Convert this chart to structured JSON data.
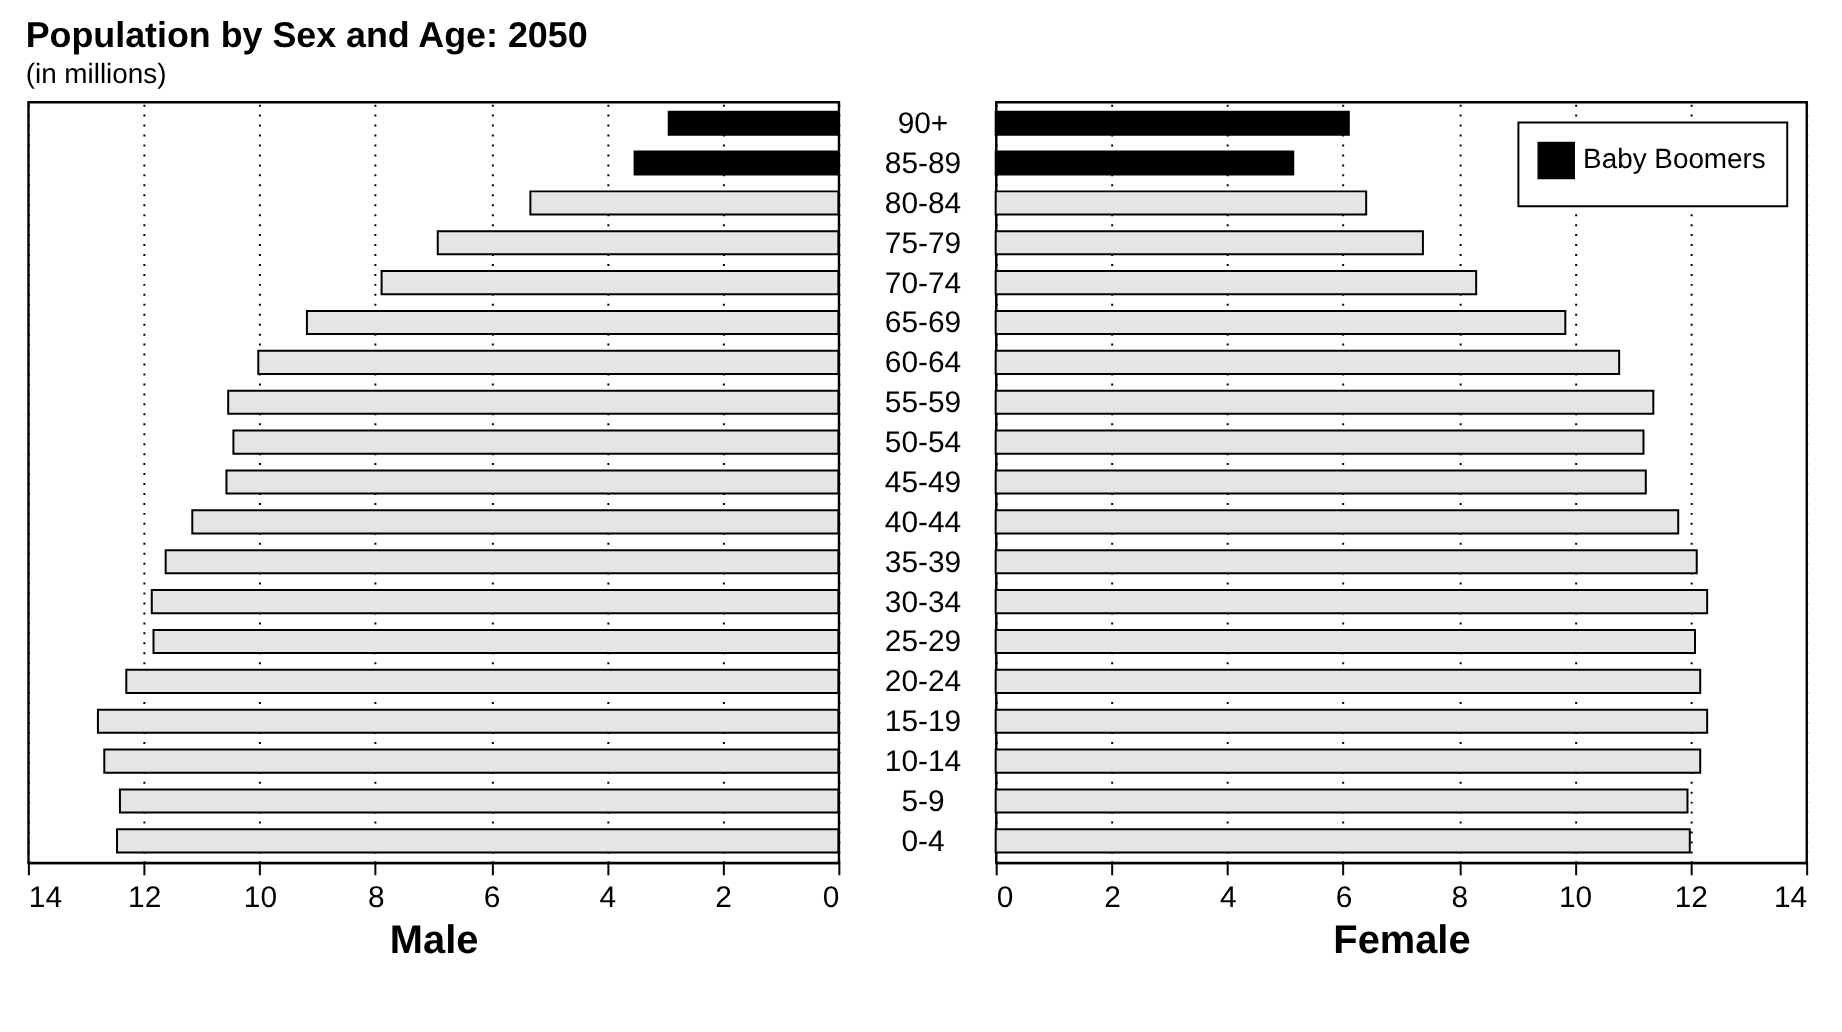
{
  "chart_data": [
    {
      "type": "bar",
      "orientation": "horizontal",
      "title": "Population by Sex and Age: 2050",
      "subtitle": "(in millions)",
      "xlabel": "Male",
      "categories": [
        "90+",
        "85-89",
        "80-84",
        "75-79",
        "70-74",
        "65-69",
        "60-64",
        "55-59",
        "50-54",
        "45-49",
        "40-44",
        "35-39",
        "30-34",
        "25-29",
        "20-24",
        "15-19",
        "10-14",
        "5-9",
        "0-4"
      ],
      "series": [
        {
          "color": "#000000",
          "values": [
            2.93,
            3.52,
            null,
            null,
            null,
            null,
            null,
            null,
            null,
            null,
            null,
            null,
            null,
            null,
            null,
            null,
            null,
            null,
            null
          ]
        },
        {
          "color": "#e5e5e5",
          "values": [
            null,
            null,
            5.32,
            6.92,
            7.89,
            9.18,
            10.02,
            10.54,
            10.45,
            10.57,
            11.16,
            11.62,
            11.86,
            11.83,
            12.3,
            12.79,
            12.68,
            12.41,
            12.46
          ]
        }
      ],
      "xlim": [
        14,
        0
      ],
      "xticks": [
        14,
        12,
        10,
        8,
        6,
        4,
        2,
        0
      ],
      "grid": "x",
      "legend": false,
      "tick_labels": "x"
    },
    {
      "type": "bar",
      "orientation": "horizontal",
      "xlabel": "Female",
      "categories": [
        "90+",
        "85-89",
        "80-84",
        "75-79",
        "70-74",
        "65-69",
        "60-64",
        "55-59",
        "50-54",
        "45-49",
        "40-44",
        "35-39",
        "30-34",
        "25-29",
        "20-24",
        "15-19",
        "10-14",
        "5-9",
        "0-4"
      ],
      "series": [
        {
          "name": "Baby Boomers",
          "color": "#000000",
          "values": [
            6.1,
            5.14,
            null,
            null,
            null,
            null,
            null,
            null,
            null,
            null,
            null,
            null,
            null,
            null,
            null,
            null,
            null,
            null,
            null
          ]
        },
        {
          "color": "#e5e5e5",
          "values": [
            null,
            null,
            6.4,
            7.38,
            8.3,
            9.84,
            10.77,
            11.36,
            11.19,
            11.23,
            11.79,
            12.11,
            12.29,
            12.08,
            12.17,
            12.29,
            12.17,
            11.95,
            11.99
          ]
        }
      ],
      "xlim": [
        0,
        14
      ],
      "xticks": [
        0,
        2,
        4,
        6,
        8,
        10,
        12,
        14
      ],
      "grid": "x",
      "legend": "top right"
    }
  ]
}
